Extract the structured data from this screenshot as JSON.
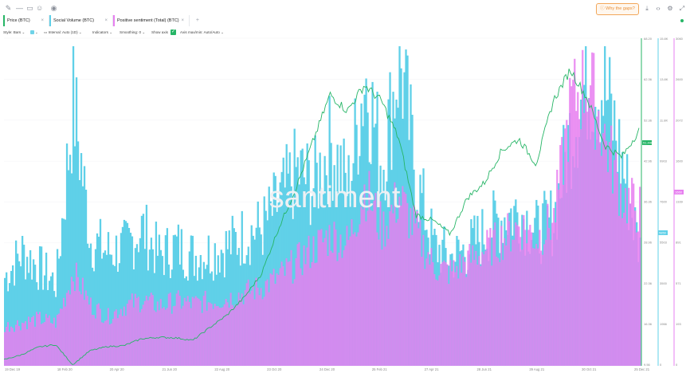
{
  "toolbar": {
    "left_icons": [
      "pencil-icon",
      "line-icon",
      "comment-icon",
      "emoji-icon",
      "eye-icon"
    ],
    "why_gaps_label": "Why the gaps?",
    "right_icons": [
      "download-icon",
      "embed-code-icon",
      "settings-icon",
      "fullscreen-icon"
    ]
  },
  "metrics": [
    {
      "label": "Price (BTC)",
      "color": "#26b566"
    },
    {
      "label": "Social Volume (BTC)",
      "color": "#5fd0e8"
    },
    {
      "label": "Positive sentiment (Total) (BTC)",
      "color": "#e77ff0"
    }
  ],
  "settings": {
    "style_label": "Style: Bars",
    "interval_label": "Interval: Auto (1D)",
    "indicators_label": "Indicators",
    "smoothing_label": "Smoothing: 0",
    "show_axis_label": "Show axis",
    "axis_label": "Axis max/min: Auto/Auto"
  },
  "watermark": "santiment",
  "chart_data": {
    "type": "area",
    "x_ticks": [
      "19 Dec 19",
      "18 Feb 20",
      "20 Apr 20",
      "21 Jun 20",
      "22 Aug 20",
      "23 Oct 20",
      "24 Dec 20",
      "25 Feb 21",
      "27 Apr 21",
      "28 Jun 21",
      "29 Aug 21",
      "30 Oct 21",
      "25 Dec 21"
    ],
    "axes": {
      "price": {
        "ticks": [
          "68.20",
          "62.36",
          "52.36",
          "42.96",
          "36.36",
          "28.96",
          "22.36",
          "16.36",
          "9.56"
        ],
        "current": "51.44K",
        "color": "#26b566"
      },
      "social_volume": {
        "ticks": [
          "15.8K",
          "13.8K",
          "11.8K",
          "9903",
          "7600",
          "5503",
          "3500",
          "1966",
          "0"
        ],
        "current": "5850",
        "color": "#5fd0e8"
      },
      "sentiment": {
        "ticks": [
          "3060",
          "2600",
          "2072",
          "1600",
          "1339",
          "891",
          "571",
          "193",
          "0"
        ],
        "current": "1660",
        "color": "#e77ff0"
      }
    },
    "series": [
      {
        "name": "Price (BTC)",
        "color": "#26b566",
        "values": [
          7.2,
          8.1,
          9.6,
          10.1,
          6.2,
          8.9,
          9.7,
          9.9,
          11.2,
          11.5,
          11.4,
          10.9,
          13.4,
          15.8,
          19.2,
          23.7,
          32.5,
          40.1,
          49.2,
          58.3,
          55.1,
          60.1,
          57.0,
          49.8,
          35.1,
          34.0,
          31.4,
          38.4,
          41.3,
          47.5,
          49.7,
          44.9,
          57.0,
          63.1,
          57.4,
          48.5,
          46.2,
          51.4
        ]
      },
      {
        "name": "Social Volume (BTC)",
        "color": "#5fd0e8",
        "values": [
          4500,
          5800,
          5000,
          4200,
          13500,
          6400,
          5800,
          6000,
          7000,
          5600,
          6100,
          5600,
          5800,
          6100,
          6700,
          7000,
          8400,
          9900,
          9200,
          11300,
          9000,
          14800,
          10200,
          15800,
          9400,
          6100,
          5500,
          6000,
          6800,
          7600,
          7900,
          6800,
          7500,
          12000,
          14800,
          14000,
          10200,
          5850
        ]
      },
      {
        "name": "Positive sentiment (Total) (BTC)",
        "color": "#e77ff0",
        "values": [
          420,
          460,
          500,
          460,
          1000,
          650,
          520,
          640,
          700,
          640,
          690,
          660,
          690,
          720,
          780,
          840,
          950,
          1100,
          1250,
          1400,
          1300,
          1900,
          1450,
          1800,
          1420,
          1060,
          1000,
          1120,
          1240,
          1360,
          1500,
          1360,
          1560,
          2800,
          3060,
          2420,
          1800,
          1660
        ]
      }
    ]
  }
}
